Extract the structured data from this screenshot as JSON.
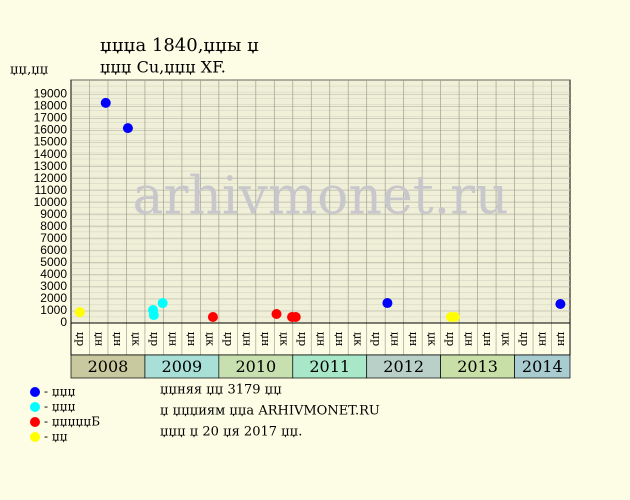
{
  "chart_data": {
    "type": "scatter",
    "title": "џџџа 1840,џџы џ",
    "subtitle": "џџџ Cu,џџџ XF.",
    "y_label": "џџ,џџ",
    "watermark": "arhivmonet.ru",
    "xlim": [
      2008,
      2014.75
    ],
    "ylim": [
      0,
      20200
    ],
    "yticks": [
      0,
      1000,
      2000,
      3000,
      4000,
      5000,
      6000,
      7000,
      8000,
      9000,
      10000,
      11000,
      12000,
      13000,
      14000,
      15000,
      16000,
      17000,
      18000,
      19000
    ],
    "grid": true,
    "quarters": [
      "џр",
      "џн",
      "џн",
      "џк",
      "џр",
      "џн",
      "џн",
      "џк",
      "џр",
      "џн",
      "џн",
      "џк",
      "џр",
      "џн",
      "џн",
      "џк",
      "џр",
      "џн",
      "џн",
      "џк",
      "џр",
      "џн",
      "џн",
      "џк",
      "џр",
      "џн",
      "џн"
    ],
    "years": [
      "2008",
      "2009",
      "2010",
      "2011",
      "2012",
      "2013",
      "2014"
    ],
    "year_colors": [
      "#c9c9a0",
      "#a8e0d8",
      "#c8e0b0",
      "#a8e8c8",
      "#b8d0c8",
      "#c8e0a8",
      "#a8ccd0"
    ],
    "series": [
      {
        "name": "- џџџ",
        "color": "#0000ff",
        "x": [
          2008.47,
          2008.77,
          2012.28,
          2014.62
        ],
        "values": [
          18300,
          16200,
          1660,
          1580
        ]
      },
      {
        "name": "- џџџ",
        "color": "#00ffff",
        "x": [
          2009.11,
          2009.12,
          2009.24
        ],
        "values": [
          1080,
          660,
          1660
        ]
      },
      {
        "name": "- џџџџџБ",
        "color": "#ff0000",
        "x": [
          2009.92,
          2010.78,
          2010.99,
          2011.04
        ],
        "values": [
          500,
          750,
          500,
          500
        ]
      },
      {
        "name": "- џџ",
        "color": "#ffff00",
        "x": [
          2008.12,
          2013.14,
          2013.19
        ],
        "values": [
          900,
          500,
          500
        ]
      }
    ],
    "notes": [
      "џџняя џџ 3179 џџ",
      "џ џџџиям џџа ARHIVMONET.RU",
      "џџџ џ 20 џя 2017 џџ."
    ]
  }
}
